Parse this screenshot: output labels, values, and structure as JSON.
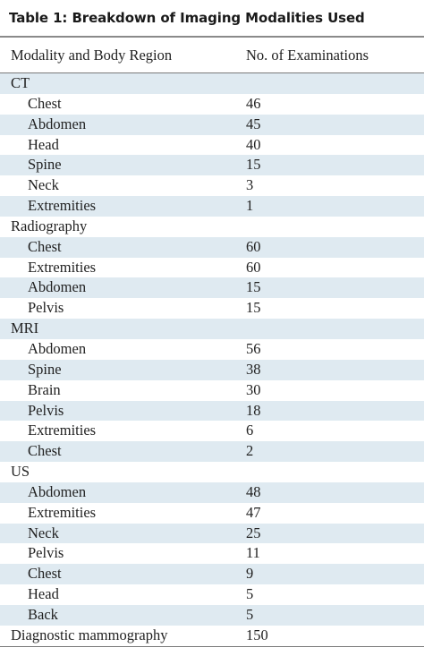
{
  "table": {
    "title": "Table 1: Breakdown of Imaging Modalities Used",
    "headers": {
      "col1": "Modality and Body Region",
      "col2": "No. of Examinations"
    },
    "rows": [
      {
        "label": "CT",
        "count": "",
        "indent": false,
        "shaded": true
      },
      {
        "label": "Chest",
        "count": "46",
        "indent": true,
        "shaded": false
      },
      {
        "label": "Abdomen",
        "count": "45",
        "indent": true,
        "shaded": true
      },
      {
        "label": "Head",
        "count": "40",
        "indent": true,
        "shaded": false
      },
      {
        "label": "Spine",
        "count": "15",
        "indent": true,
        "shaded": true
      },
      {
        "label": "Neck",
        "count": "3",
        "indent": true,
        "shaded": false
      },
      {
        "label": "Extremities",
        "count": "1",
        "indent": true,
        "shaded": true
      },
      {
        "label": "Radiography",
        "count": "",
        "indent": false,
        "shaded": false
      },
      {
        "label": "Chest",
        "count": "60",
        "indent": true,
        "shaded": true
      },
      {
        "label": "Extremities",
        "count": "60",
        "indent": true,
        "shaded": false
      },
      {
        "label": "Abdomen",
        "count": "15",
        "indent": true,
        "shaded": true
      },
      {
        "label": "Pelvis",
        "count": "15",
        "indent": true,
        "shaded": false
      },
      {
        "label": "MRI",
        "count": "",
        "indent": false,
        "shaded": true
      },
      {
        "label": "Abdomen",
        "count": "56",
        "indent": true,
        "shaded": false
      },
      {
        "label": "Spine",
        "count": "38",
        "indent": true,
        "shaded": true
      },
      {
        "label": "Brain",
        "count": "30",
        "indent": true,
        "shaded": false
      },
      {
        "label": "Pelvis",
        "count": "18",
        "indent": true,
        "shaded": true
      },
      {
        "label": "Extremities",
        "count": "6",
        "indent": true,
        "shaded": false
      },
      {
        "label": "Chest",
        "count": "2",
        "indent": true,
        "shaded": true
      },
      {
        "label": "US",
        "count": "",
        "indent": false,
        "shaded": false
      },
      {
        "label": "Abdomen",
        "count": "48",
        "indent": true,
        "shaded": true
      },
      {
        "label": "Extremities",
        "count": "47",
        "indent": true,
        "shaded": false
      },
      {
        "label": "Neck",
        "count": "25",
        "indent": true,
        "shaded": true
      },
      {
        "label": "Pelvis",
        "count": "11",
        "indent": true,
        "shaded": false
      },
      {
        "label": "Chest",
        "count": "9",
        "indent": true,
        "shaded": true
      },
      {
        "label": "Head",
        "count": "5",
        "indent": true,
        "shaded": false
      },
      {
        "label": "Back",
        "count": "5",
        "indent": true,
        "shaded": true
      },
      {
        "label": "Diagnostic mammography",
        "count": "150",
        "indent": false,
        "shaded": false
      }
    ]
  },
  "colors": {
    "shade": "#dfeaf1",
    "rule": "#7a7a7a"
  }
}
